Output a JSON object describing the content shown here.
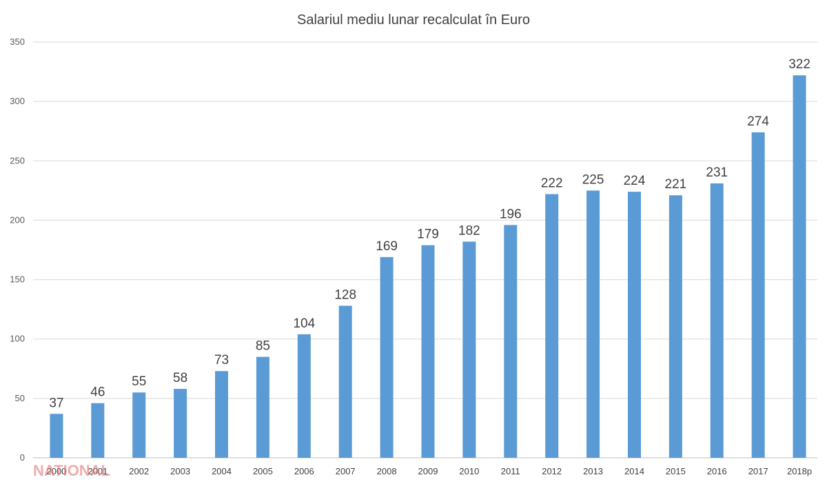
{
  "chart_data": {
    "type": "bar",
    "title": "Salariul mediu lunar recalculat în Euro",
    "xlabel": "",
    "ylabel": "",
    "categories": [
      "2000",
      "2001",
      "2002",
      "2003",
      "2004",
      "2005",
      "2006",
      "2007",
      "2008",
      "2009",
      "2010",
      "2011",
      "2012",
      "2013",
      "2014",
      "2015",
      "2016",
      "2017",
      "2018p"
    ],
    "values": [
      37,
      46,
      55,
      58,
      73,
      85,
      104,
      128,
      169,
      179,
      182,
      196,
      222,
      225,
      224,
      221,
      231,
      274,
      322
    ],
    "ylim": [
      0,
      350
    ],
    "yticks": [
      0,
      50,
      100,
      150,
      200,
      250,
      300,
      350
    ],
    "grid": true,
    "legend": "none",
    "bar_color": "#5b9bd5"
  },
  "watermark": "NATIONAL"
}
